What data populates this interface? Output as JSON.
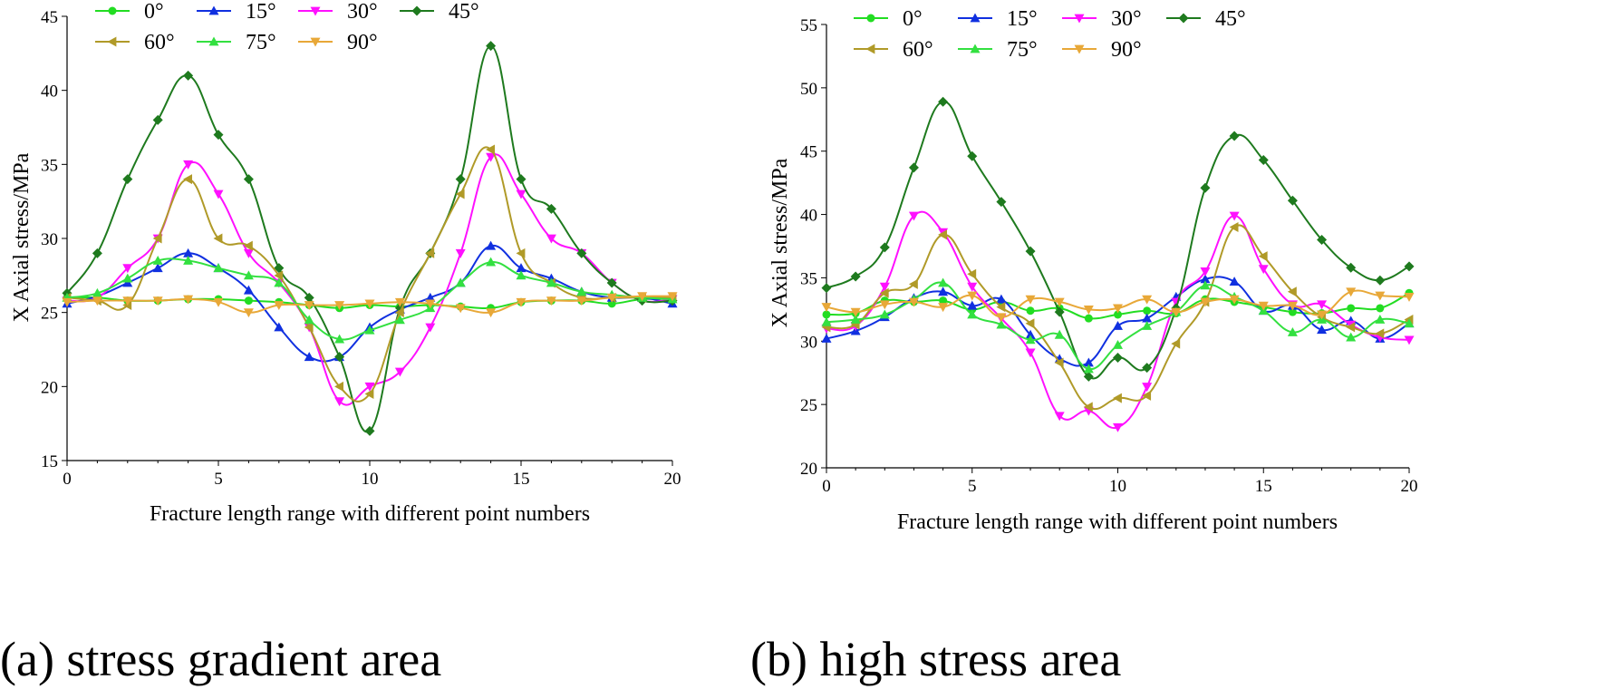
{
  "captions": {
    "a": "(a) stress gradient area",
    "b": "(b) high stress area"
  },
  "colors": {
    "0°": "#22dd22",
    "15°": "#1030e0",
    "30°": "#ff10ff",
    "45°": "#1e7a1e",
    "60°": "#b09a28",
    "75°": "#33e040",
    "90°": "#e8a838"
  },
  "chart_data": [
    {
      "type": "line",
      "xlabel": "Fracture length range with different point numbers",
      "ylabel": "X Axial stress/MPa",
      "xlim": [
        0,
        20
      ],
      "ylim": [
        15,
        45
      ],
      "xticks": [
        0,
        5,
        10,
        15,
        20
      ],
      "yticks": [
        15,
        20,
        25,
        30,
        35,
        40,
        45
      ],
      "x": [
        0,
        1,
        2,
        3,
        4,
        5,
        6,
        7,
        8,
        9,
        10,
        11,
        12,
        13,
        14,
        15,
        16,
        17,
        18,
        19,
        20
      ],
      "series": [
        {
          "name": "0°",
          "marker": "circle",
          "values": [
            26,
            26,
            25.8,
            25.8,
            25.9,
            25.9,
            25.8,
            25.7,
            25.5,
            25.3,
            25.5,
            25.4,
            25.5,
            25.4,
            25.3,
            25.7,
            25.8,
            25.8,
            25.6,
            25.9,
            25.9
          ]
        },
        {
          "name": "15°",
          "marker": "triangle",
          "values": [
            25.6,
            26.1,
            27,
            28,
            29,
            28,
            26.5,
            24,
            22,
            22,
            24,
            25.2,
            26,
            27,
            29.5,
            28,
            27.3,
            26.4,
            26,
            26,
            25.6
          ]
        },
        {
          "name": "30°",
          "marker": "tridown",
          "values": [
            25.8,
            26,
            28,
            30,
            35,
            33,
            29,
            27,
            24,
            19,
            20,
            21,
            24,
            29,
            35.5,
            33,
            30,
            29,
            27,
            25.8,
            25.9
          ]
        },
        {
          "name": "45°",
          "marker": "diamond",
          "values": [
            26.3,
            29,
            34,
            38,
            41,
            37,
            34,
            28,
            26,
            22,
            17,
            25.3,
            29,
            34,
            43,
            34,
            32,
            29,
            27,
            25.8,
            25.8
          ]
        },
        {
          "name": "60°",
          "marker": "triright",
          "values": [
            26,
            25.8,
            25.5,
            30,
            34,
            30,
            29.5,
            27.5,
            24,
            20,
            19.5,
            25,
            29,
            33,
            36,
            29,
            27,
            26,
            26,
            26,
            26
          ]
        },
        {
          "name": "75°",
          "marker": "triangle",
          "values": [
            26,
            26.3,
            27.3,
            28.5,
            28.5,
            28,
            27.5,
            27,
            24.5,
            23.2,
            23.8,
            24.5,
            25.3,
            27,
            28.4,
            27.5,
            27,
            26.4,
            26.2,
            26,
            25.9
          ]
        },
        {
          "name": "90°",
          "marker": "tridown",
          "values": [
            25.7,
            25.8,
            25.8,
            25.8,
            25.9,
            25.7,
            25,
            25.5,
            25.5,
            25.5,
            25.6,
            25.7,
            25.6,
            25.3,
            25,
            25.7,
            25.8,
            25.8,
            26,
            26.1,
            26.1
          ]
        }
      ]
    },
    {
      "type": "line",
      "xlabel": "Fracture length range with different point numbers",
      "ylabel": "X Axial stress/MPa",
      "xlim": [
        0,
        20
      ],
      "ylim": [
        20,
        55
      ],
      "xticks": [
        0,
        5,
        10,
        15,
        20
      ],
      "yticks": [
        20,
        25,
        30,
        35,
        40,
        45,
        50,
        55
      ],
      "x": [
        0,
        1,
        2,
        3,
        4,
        5,
        6,
        7,
        8,
        9,
        10,
        11,
        12,
        13,
        14,
        15,
        16,
        17,
        18,
        19,
        20
      ],
      "series": [
        {
          "name": "0°",
          "marker": "circle",
          "values": [
            32.1,
            32.2,
            33.2,
            33.1,
            33.2,
            32.5,
            33.1,
            32.4,
            32.6,
            31.8,
            32.1,
            32.4,
            32.2,
            33.3,
            33.1,
            32.7,
            32.3,
            32.2,
            32.6,
            32.6,
            33.8
          ]
        },
        {
          "name": "15°",
          "marker": "triangle",
          "values": [
            30.2,
            30.8,
            31.9,
            33.4,
            33.9,
            32.8,
            33.3,
            30.5,
            28.6,
            28.3,
            31.2,
            31.8,
            33.5,
            34.9,
            34.7,
            32.4,
            32.8,
            30.9,
            31.6,
            30.2,
            31.4
          ]
        },
        {
          "name": "30°",
          "marker": "tridown",
          "values": [
            31,
            31.2,
            34.3,
            39.9,
            38.6,
            34.3,
            31.8,
            29.1,
            24.1,
            24.5,
            23.2,
            26.4,
            33.1,
            35.5,
            39.9,
            35.7,
            32.9,
            32.9,
            31.3,
            30.3,
            30.1
          ]
        },
        {
          "name": "45°",
          "marker": "diamond",
          "values": [
            34.2,
            35.1,
            37.4,
            43.7,
            48.9,
            44.6,
            41,
            37.1,
            32.3,
            27.2,
            28.7,
            27.9,
            32.6,
            42.1,
            46.2,
            44.3,
            41.1,
            38,
            35.8,
            34.8,
            35.9
          ]
        },
        {
          "name": "60°",
          "marker": "triright",
          "values": [
            31.1,
            31.3,
            33.8,
            34.5,
            38.4,
            35.3,
            32.7,
            31.4,
            28.3,
            24.8,
            25.5,
            25.7,
            29.8,
            33.1,
            39,
            36.7,
            33.9,
            31.9,
            31.1,
            30.6,
            31.7
          ]
        },
        {
          "name": "75°",
          "marker": "triangle",
          "values": [
            31.5,
            31.7,
            32.1,
            33.3,
            34.6,
            32.1,
            31.3,
            30.1,
            30.5,
            27.8,
            29.7,
            31.2,
            32.3,
            34.4,
            33.5,
            32.4,
            30.7,
            31.7,
            30.3,
            31.7,
            31.4
          ]
        },
        {
          "name": "90°",
          "marker": "tridown",
          "values": [
            32.7,
            32.3,
            32.9,
            33.1,
            32.7,
            33.6,
            31.9,
            33.3,
            33.1,
            32.5,
            32.6,
            33.3,
            32.3,
            33.1,
            33.3,
            32.8,
            32.8,
            32.1,
            33.9,
            33.6,
            33.5
          ]
        }
      ]
    }
  ]
}
